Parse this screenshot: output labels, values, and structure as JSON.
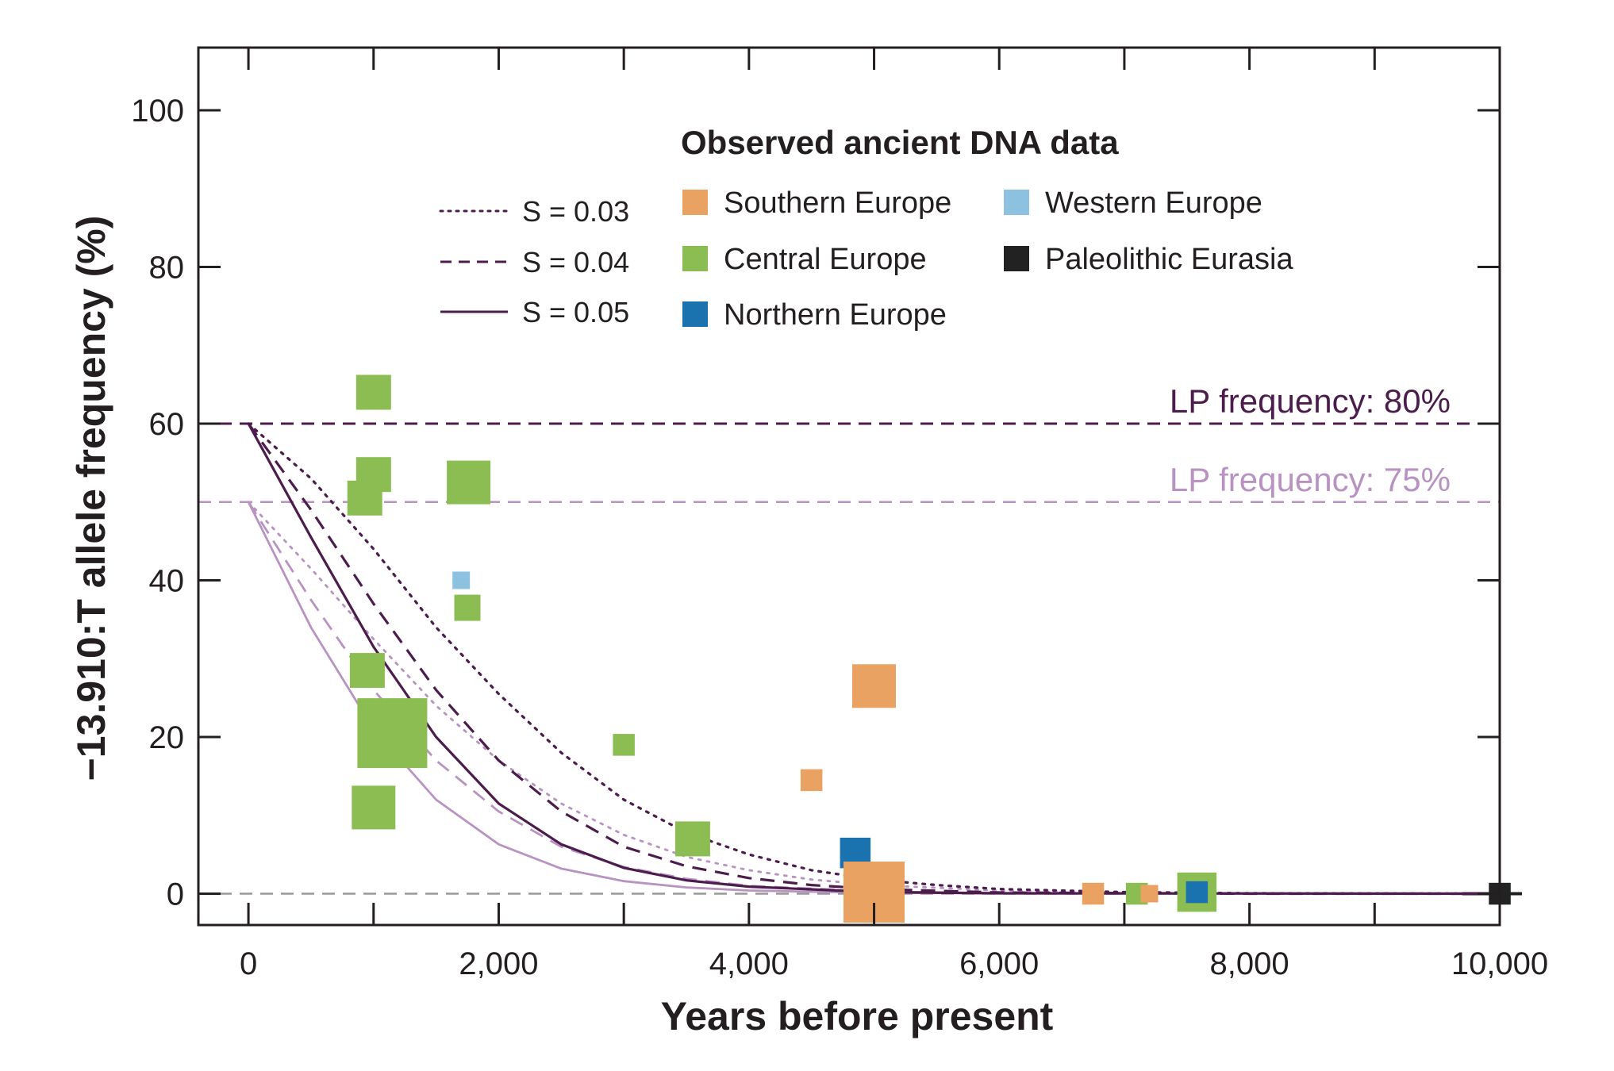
{
  "chart_data": {
    "type": "scatter",
    "xlabel": "Years before present",
    "ylabel": "−13.910:T allele frequency (%)",
    "xlim": [
      -400,
      10000
    ],
    "ylim": [
      -4,
      108
    ],
    "x_ticks": [
      0,
      2000,
      4000,
      6000,
      8000,
      10000
    ],
    "x_tick_labels": [
      "0",
      "2,000",
      "4,000",
      "6,000",
      "8,000",
      "10,000"
    ],
    "x_minor_ticks": [
      1000,
      3000,
      5000,
      7000,
      9000
    ],
    "y_ticks": [
      0,
      20,
      40,
      60,
      80,
      100
    ],
    "y_tick_labels": [
      "0",
      "20",
      "40",
      "60",
      "80",
      "100"
    ],
    "grid": false,
    "legend_title": "Observed ancient DNA data",
    "legend_placement": "top",
    "colors": {
      "southern": "#e9a262",
      "central": "#8cbd52",
      "northern": "#1a73ae",
      "western": "#8dc1e0",
      "paleolithic": "#222222",
      "lp80": "#4b1c4c",
      "lp75": "#b893c2",
      "zero_line": "#999999"
    },
    "groups": [
      {
        "key": "southern",
        "name": "Southern Europe"
      },
      {
        "key": "central",
        "name": "Central Europe"
      },
      {
        "key": "northern",
        "name": "Northern Europe"
      },
      {
        "key": "western",
        "name": "Western Europe"
      },
      {
        "key": "paleolithic",
        "name": "Paleolithic Eurasia"
      }
    ],
    "points": [
      {
        "group": "central",
        "x": 1000,
        "y": 64,
        "size": 3
      },
      {
        "group": "central",
        "x": 1000,
        "y": 53.5,
        "size": 3
      },
      {
        "group": "central",
        "x": 930,
        "y": 50.5,
        "size": 3
      },
      {
        "group": "central",
        "x": 1760,
        "y": 52.5,
        "size": 4
      },
      {
        "group": "western",
        "x": 1700,
        "y": 40,
        "size": 1
      },
      {
        "group": "central",
        "x": 1750,
        "y": 36.5,
        "size": 2
      },
      {
        "group": "central",
        "x": 950,
        "y": 28.5,
        "size": 3
      },
      {
        "group": "central",
        "x": 1150,
        "y": 20.5,
        "size": 7
      },
      {
        "group": "central",
        "x": 1000,
        "y": 11,
        "size": 4
      },
      {
        "group": "central",
        "x": 3000,
        "y": 19,
        "size": 1.5
      },
      {
        "group": "central",
        "x": 3550,
        "y": 7,
        "size": 3
      },
      {
        "group": "southern",
        "x": 5000,
        "y": 26.5,
        "size": 4
      },
      {
        "group": "southern",
        "x": 4500,
        "y": 14.5,
        "size": 1.5
      },
      {
        "group": "northern",
        "x": 4850,
        "y": 5.2,
        "size": 2.5
      },
      {
        "group": "southern",
        "x": 5000,
        "y": 0.2,
        "size": 6
      },
      {
        "group": "southern",
        "x": 6750,
        "y": 0,
        "size": 1.5
      },
      {
        "group": "central",
        "x": 7100,
        "y": 0,
        "size": 1.5
      },
      {
        "group": "southern",
        "x": 7200,
        "y": 0,
        "size": 1
      },
      {
        "group": "central",
        "x": 7580,
        "y": 0.2,
        "size": 3.5
      },
      {
        "group": "northern",
        "x": 7580,
        "y": 0.2,
        "size": 1.5
      },
      {
        "group": "paleolithic",
        "x": 10000,
        "y": 0,
        "size": 1.5
      }
    ],
    "curve_styles": [
      {
        "s": 0.03,
        "label": "S = 0.03",
        "dash": "dotted"
      },
      {
        "s": 0.04,
        "label": "S = 0.04",
        "dash": "dashed"
      },
      {
        "s": 0.05,
        "label": "S = 0.05",
        "dash": "solid"
      }
    ],
    "lp_series": [
      {
        "label": "LP frequency: 80%",
        "start_y": 60,
        "color": "#4b1c4c"
      },
      {
        "label": "LP frequency: 75%",
        "start_y": 50,
        "color": "#b893c2"
      }
    ],
    "model_curve_points": {
      "lp80": {
        "s003": [
          [
            0,
            60
          ],
          [
            500,
            53
          ],
          [
            1000,
            44
          ],
          [
            1500,
            34
          ],
          [
            2000,
            25.5
          ],
          [
            2500,
            18
          ],
          [
            3000,
            12
          ],
          [
            3500,
            7.8
          ],
          [
            4000,
            5
          ],
          [
            4500,
            3
          ],
          [
            5000,
            1.8
          ],
          [
            5500,
            1.1
          ],
          [
            6000,
            0.6
          ],
          [
            7000,
            0.2
          ],
          [
            8000,
            0.05
          ],
          [
            10000,
            0
          ]
        ],
        "s004": [
          [
            0,
            60
          ],
          [
            500,
            49
          ],
          [
            1000,
            37
          ],
          [
            1500,
            26
          ],
          [
            2000,
            17
          ],
          [
            2500,
            10.5
          ],
          [
            3000,
            6
          ],
          [
            3500,
            3.5
          ],
          [
            4000,
            2
          ],
          [
            4500,
            1.1
          ],
          [
            5000,
            0.6
          ],
          [
            6000,
            0.15
          ],
          [
            8000,
            0
          ],
          [
            10000,
            0
          ]
        ],
        "s005": [
          [
            0,
            60
          ],
          [
            500,
            45.5
          ],
          [
            1000,
            31.5
          ],
          [
            1500,
            20
          ],
          [
            2000,
            11.5
          ],
          [
            2500,
            6.3
          ],
          [
            3000,
            3.3
          ],
          [
            3500,
            1.7
          ],
          [
            4000,
            0.9
          ],
          [
            5000,
            0.2
          ],
          [
            6000,
            0.05
          ],
          [
            10000,
            0
          ]
        ]
      },
      "lp75": {
        "s003": [
          [
            0,
            50
          ],
          [
            500,
            41.5
          ],
          [
            1000,
            32.5
          ],
          [
            1500,
            24
          ],
          [
            2000,
            17
          ],
          [
            2500,
            11.5
          ],
          [
            3000,
            7.5
          ],
          [
            3500,
            4.7
          ],
          [
            4000,
            3
          ],
          [
            4500,
            1.8
          ],
          [
            5000,
            1.1
          ],
          [
            6000,
            0.4
          ],
          [
            7000,
            0.1
          ],
          [
            10000,
            0
          ]
        ],
        "s004": [
          [
            0,
            50
          ],
          [
            500,
            37.5
          ],
          [
            1000,
            26
          ],
          [
            1500,
            17
          ],
          [
            2000,
            10.5
          ],
          [
            2500,
            6
          ],
          [
            3000,
            3.4
          ],
          [
            3500,
            1.9
          ],
          [
            4000,
            1
          ],
          [
            5000,
            0.3
          ],
          [
            6000,
            0.05
          ],
          [
            10000,
            0
          ]
        ],
        "s005": [
          [
            0,
            50
          ],
          [
            500,
            34
          ],
          [
            1000,
            21
          ],
          [
            1500,
            12
          ],
          [
            2000,
            6.3
          ],
          [
            2500,
            3.2
          ],
          [
            3000,
            1.6
          ],
          [
            3500,
            0.8
          ],
          [
            4000,
            0.4
          ],
          [
            5000,
            0.1
          ],
          [
            10000,
            0
          ]
        ]
      }
    }
  }
}
